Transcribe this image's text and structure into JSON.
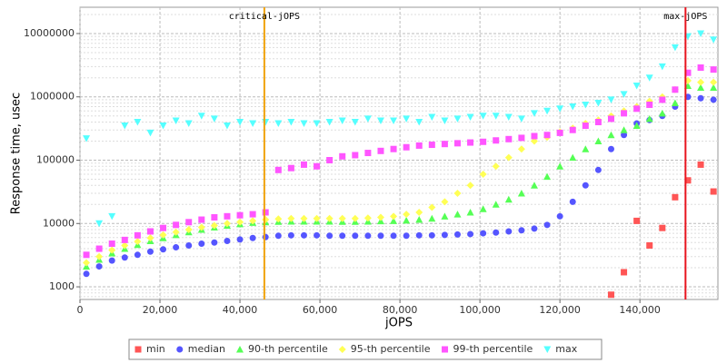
{
  "chart_data": {
    "type": "scatter",
    "x_label": "jOPS",
    "y_label": "Response time, usec",
    "log_y": true,
    "grid": true,
    "xlim": [
      0,
      159500
    ],
    "ylim": [
      631,
      26000000
    ],
    "xticks": [
      {
        "value": 0,
        "label": "0"
      },
      {
        "value": 20000,
        "label": "20,000"
      },
      {
        "value": 40000,
        "label": "40,000"
      },
      {
        "value": 60000,
        "label": "60,000"
      },
      {
        "value": 80000,
        "label": "80,000"
      },
      {
        "value": 100000,
        "label": "100,000"
      },
      {
        "value": 120000,
        "label": "120,000"
      },
      {
        "value": 140000,
        "label": "140,000"
      }
    ],
    "yticks": [
      1000,
      10000,
      100000,
      1000000,
      10000000
    ],
    "annotations": [
      {
        "label": "critical-jOPS",
        "value": 46100,
        "color": "#f0a30a"
      },
      {
        "label": "max-jOPS",
        "value": 151400,
        "color": "#e8141e"
      }
    ],
    "x": [
      1600,
      4800,
      8000,
      11200,
      14400,
      17600,
      20800,
      24000,
      27200,
      30400,
      33600,
      36800,
      40000,
      43200,
      46400,
      49600,
      52800,
      56000,
      59200,
      62400,
      65600,
      68800,
      72000,
      75200,
      78400,
      81600,
      84800,
      88000,
      91200,
      94400,
      97600,
      100800,
      104000,
      107200,
      110400,
      113600,
      116800,
      120000,
      123200,
      126400,
      129600,
      132800,
      136000,
      139200,
      142400,
      145600,
      148800,
      152000,
      155200,
      158400
    ],
    "series": [
      {
        "name": "min",
        "color": "#ff5555",
        "marker": "square",
        "values": [
          null,
          null,
          null,
          null,
          null,
          null,
          null,
          null,
          null,
          null,
          null,
          null,
          null,
          null,
          null,
          null,
          null,
          null,
          null,
          null,
          null,
          null,
          null,
          null,
          null,
          null,
          null,
          null,
          null,
          null,
          null,
          null,
          null,
          null,
          null,
          null,
          null,
          null,
          null,
          null,
          null,
          750,
          1700,
          11000,
          4500,
          8500,
          26000,
          48000,
          85000,
          32000
        ]
      },
      {
        "name": "median",
        "color": "#5555ff",
        "marker": "circle",
        "values": [
          1600,
          2100,
          2600,
          2900,
          3200,
          3600,
          3900,
          4200,
          4500,
          4800,
          5000,
          5300,
          5600,
          5900,
          6100,
          6400,
          6500,
          6500,
          6500,
          6400,
          6400,
          6400,
          6400,
          6400,
          6400,
          6400,
          6500,
          6500,
          6600,
          6700,
          6800,
          7000,
          7200,
          7500,
          7800,
          8300,
          9500,
          13000,
          22000,
          40000,
          70000,
          150000,
          250000,
          380000,
          430000,
          500000,
          700000,
          1000000,
          950000,
          900000
        ]
      },
      {
        "name": "90-th percentile",
        "color": "#55ff55",
        "marker": "triangle",
        "values": [
          2100,
          2700,
          3400,
          4000,
          4600,
          5300,
          5900,
          6600,
          7300,
          8000,
          8700,
          9300,
          9800,
          10300,
          10500,
          10700,
          10800,
          10800,
          10800,
          10800,
          10700,
          10700,
          10800,
          10900,
          11000,
          11200,
          11500,
          12000,
          13000,
          14000,
          15000,
          17000,
          20000,
          24000,
          30000,
          40000,
          55000,
          80000,
          110000,
          150000,
          200000,
          250000,
          300000,
          350000,
          450000,
          550000,
          800000,
          1500000,
          1400000,
          1400000
        ]
      },
      {
        "name": "95-th percentile",
        "color": "#ffff55",
        "marker": "diamond",
        "values": [
          2400,
          3000,
          3800,
          4500,
          5200,
          5900,
          6600,
          7300,
          8000,
          8700,
          9300,
          10000,
          10500,
          11000,
          11500,
          11800,
          12000,
          12000,
          12000,
          12000,
          12000,
          12000,
          12200,
          12500,
          13000,
          14000,
          15000,
          18000,
          22000,
          30000,
          40000,
          60000,
          80000,
          110000,
          150000,
          200000,
          230000,
          280000,
          320000,
          380000,
          430000,
          500000,
          600000,
          700000,
          850000,
          1000000,
          1300000,
          1800000,
          1700000,
          1700000
        ]
      },
      {
        "name": "99-th percentile",
        "color": "#ff55ff",
        "marker": "square",
        "values": [
          3200,
          4000,
          4800,
          5500,
          6500,
          7500,
          8500,
          9500,
          10500,
          11500,
          12500,
          13000,
          13500,
          14000,
          15000,
          70000,
          75000,
          85000,
          80000,
          100000,
          115000,
          120000,
          130000,
          140000,
          150000,
          160000,
          170000,
          175000,
          180000,
          185000,
          190000,
          195000,
          205000,
          215000,
          225000,
          240000,
          250000,
          270000,
          300000,
          350000,
          400000,
          450000,
          550000,
          650000,
          750000,
          900000,
          1300000,
          2400000,
          2900000,
          2700000
        ]
      },
      {
        "name": "max",
        "color": "#55ffff",
        "marker": "down-triangle",
        "values": [
          220000,
          10000,
          13000,
          350000,
          400000,
          270000,
          350000,
          420000,
          380000,
          500000,
          450000,
          350000,
          400000,
          380000,
          400000,
          380000,
          400000,
          380000,
          380000,
          400000,
          420000,
          400000,
          450000,
          420000,
          420000,
          450000,
          400000,
          480000,
          420000,
          450000,
          480000,
          500000,
          500000,
          480000,
          450000,
          550000,
          600000,
          650000,
          700000,
          750000,
          800000,
          900000,
          1100000,
          1500000,
          2000000,
          3000000,
          6000000,
          9000000,
          10000000,
          8000000
        ]
      }
    ]
  }
}
